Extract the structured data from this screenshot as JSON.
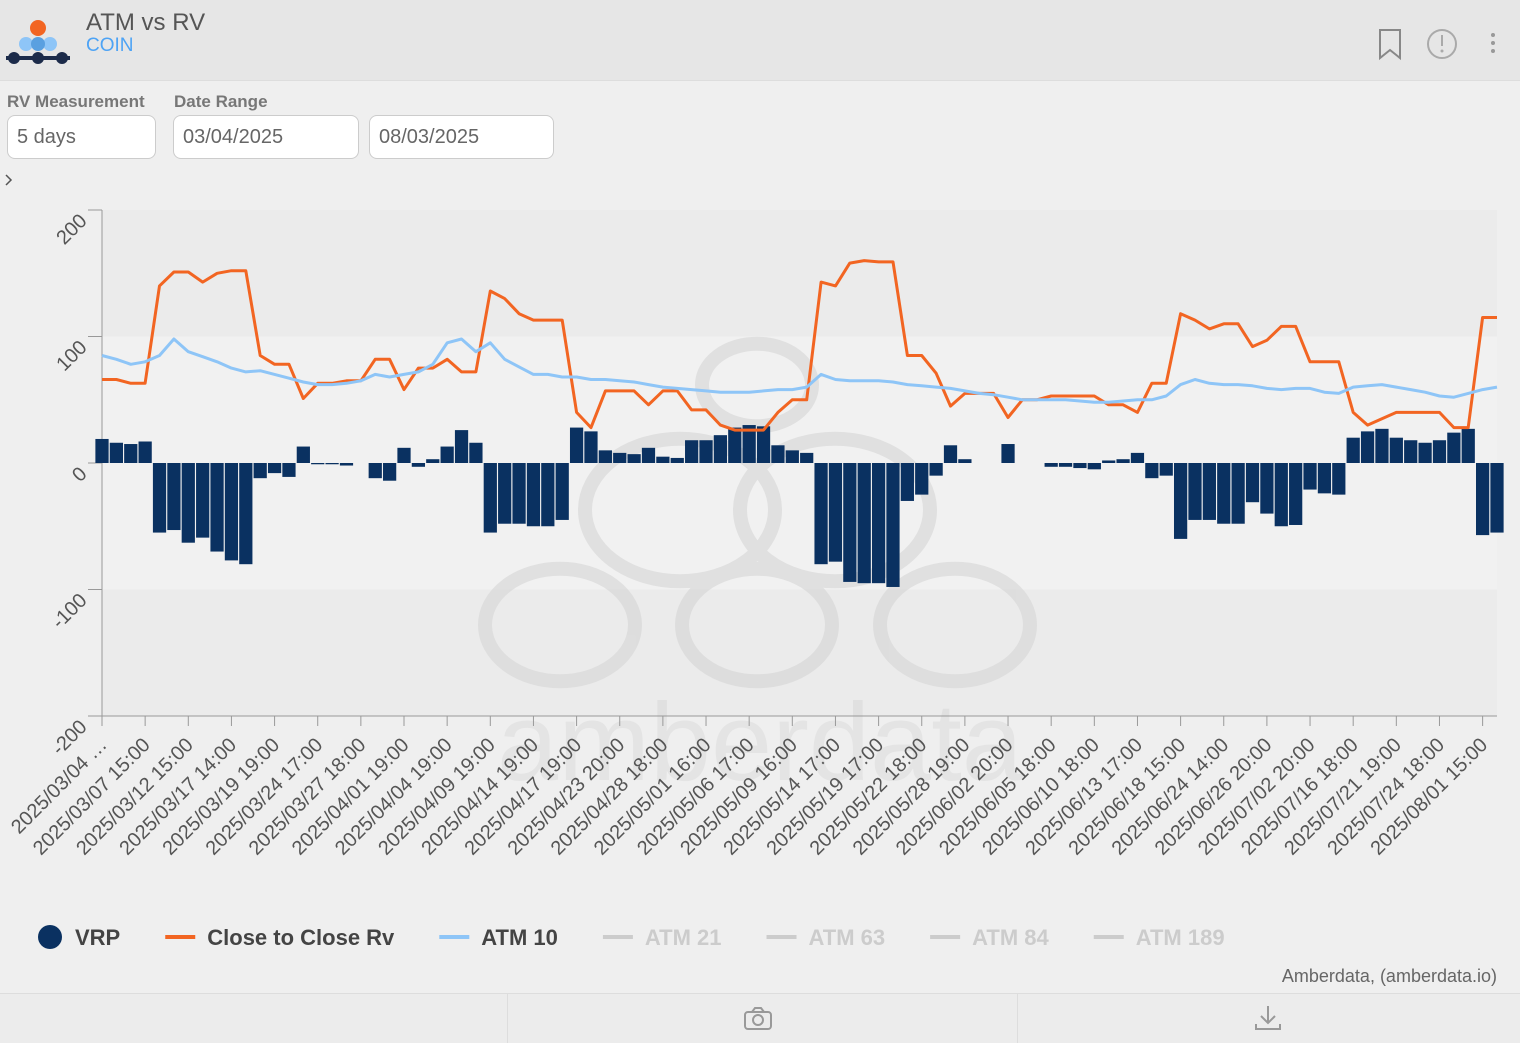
{
  "header": {
    "title": "ATM vs RV",
    "subtitle": "COIN"
  },
  "controls": {
    "rv_label": "RV Measurement",
    "rv_value": "5 days",
    "date_label": "Date Range",
    "date_from": "03/04/2025",
    "date_to": "08/03/2025"
  },
  "chart_data": {
    "type": "bar_line",
    "categories": [
      "2025/03/04 …",
      null,
      null,
      "2025/03/07 15:00",
      null,
      null,
      "2025/03/12 15:00",
      null,
      null,
      "2025/03/17 14:00",
      null,
      null,
      "2025/03/19 19:00",
      null,
      null,
      "2025/03/24 17:00",
      null,
      null,
      "2025/03/27 18:00",
      null,
      null,
      "2025/04/01 19:00",
      null,
      null,
      "2025/04/04 19:00",
      null,
      null,
      "2025/04/09 19:00",
      null,
      null,
      "2025/04/14 19:00",
      null,
      null,
      "2025/04/17 19:00",
      null,
      null,
      "2025/04/23 20:00",
      null,
      null,
      "2025/04/28 18:00",
      null,
      null,
      "2025/05/01 16:00",
      null,
      null,
      "2025/05/06 17:00",
      null,
      null,
      "2025/05/09 16:00",
      null,
      null,
      "2025/05/14 17:00",
      null,
      null,
      "2025/05/19 17:00",
      null,
      null,
      "2025/05/22 18:00",
      null,
      null,
      "2025/05/28 19:00",
      null,
      null,
      "2025/06/02 20:00",
      null,
      null,
      "2025/06/05 18:00",
      null,
      null,
      "2025/06/10 18:00",
      null,
      null,
      "2025/06/13 17:00",
      null,
      null,
      "2025/06/18 15:00",
      null,
      null,
      "2025/06/24 14:00",
      null,
      null,
      "2025/06/26 20:00",
      null,
      null,
      "2025/07/02 20:00",
      null,
      null,
      "2025/07/16 18:00",
      null,
      null,
      "2025/07/21 19:00",
      null,
      null,
      "2025/07/24 18:00",
      null,
      null,
      "2025/08/01 15:00",
      null
    ],
    "series": [
      {
        "name": "VRP",
        "kind": "bar",
        "color": "#0a3161",
        "values": [
          19,
          16,
          15,
          17,
          -55,
          -53,
          -63,
          -59,
          -70,
          -77,
          -80,
          -12,
          -8,
          -11,
          13,
          -1,
          -1,
          -2,
          0,
          -12,
          -14,
          12,
          -3,
          3,
          13,
          26,
          16,
          -55,
          -48,
          -48,
          -50,
          -50,
          -45,
          28,
          25,
          10,
          8,
          7,
          12,
          5,
          4,
          18,
          18,
          22,
          28,
          30,
          29,
          14,
          10,
          8,
          -80,
          -78,
          -94,
          -95,
          -95,
          -98,
          -30,
          -25,
          -10,
          14,
          3,
          0,
          0,
          15,
          0,
          0,
          -3,
          -3,
          -4,
          -5,
          2,
          3,
          8,
          -12,
          -10,
          -60,
          -45,
          -45,
          -48,
          -48,
          -31,
          -40,
          -50,
          -49,
          -21,
          -24,
          -25,
          20,
          25,
          27,
          20,
          18,
          16,
          18,
          24,
          27,
          -57,
          -55
        ]
      },
      {
        "name": "Close to Close Rv",
        "kind": "line",
        "color": "#f26522",
        "values": [
          66,
          66,
          63,
          63,
          140,
          151,
          151,
          143,
          150,
          152,
          152,
          85,
          78,
          78,
          51,
          63,
          63,
          65,
          65,
          82,
          82,
          58,
          75,
          75,
          82,
          72,
          72,
          136,
          130,
          118,
          113,
          113,
          113,
          40,
          28,
          57,
          57,
          57,
          46,
          57,
          57,
          42,
          42,
          30,
          26,
          26,
          26,
          40,
          50,
          50,
          143,
          140,
          158,
          160,
          159,
          159,
          85,
          85,
          71,
          45,
          55,
          55,
          55,
          36,
          50,
          50,
          53,
          53,
          53,
          53,
          46,
          46,
          40,
          63,
          63,
          118,
          113,
          106,
          110,
          110,
          92,
          97,
          108,
          108,
          80,
          80,
          80,
          40,
          30,
          35,
          40,
          40,
          40,
          40,
          28,
          28,
          115,
          115
        ]
      },
      {
        "name": "ATM 10",
        "kind": "line",
        "color": "#8ec5f7",
        "values": [
          85,
          82,
          78,
          80,
          85,
          98,
          88,
          84,
          80,
          75,
          72,
          73,
          70,
          67,
          64,
          62,
          62,
          63,
          65,
          70,
          68,
          70,
          72,
          78,
          95,
          98,
          88,
          95,
          82,
          76,
          70,
          70,
          68,
          68,
          66,
          66,
          65,
          64,
          62,
          60,
          59,
          58,
          57,
          56,
          56,
          56,
          57,
          58,
          58,
          60,
          70,
          66,
          65,
          65,
          65,
          64,
          62,
          61,
          60,
          59,
          57,
          55,
          54,
          52,
          50,
          50,
          50,
          50,
          49,
          48,
          48,
          49,
          50,
          50,
          53,
          62,
          66,
          63,
          62,
          62,
          61,
          59,
          58,
          59,
          59,
          56,
          55,
          60,
          61,
          62,
          60,
          58,
          56,
          53,
          52,
          55,
          58,
          60
        ]
      }
    ],
    "hidden_series": [
      "ATM 21",
      "ATM 63",
      "ATM 84",
      "ATM 189"
    ],
    "ylim": [
      -200,
      200
    ],
    "yticks": [
      -200,
      -100,
      0,
      100,
      200
    ],
    "plot_band": [
      -100,
      100
    ],
    "watermark": "amberdata",
    "credit": "Amberdata, (amberdata.io)"
  }
}
